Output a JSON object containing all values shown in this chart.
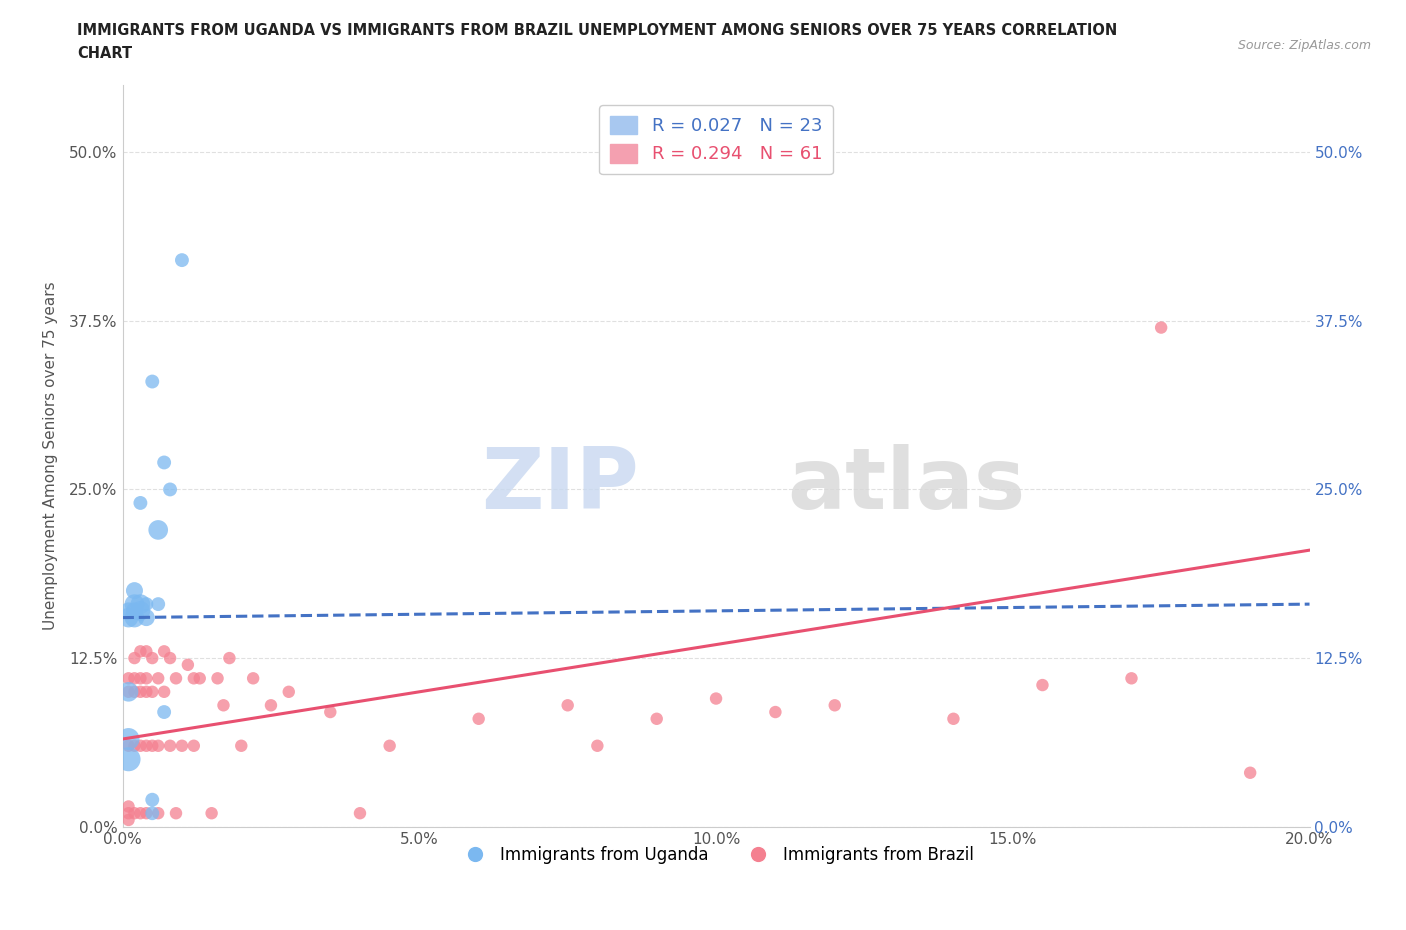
{
  "title_line1": "IMMIGRANTS FROM UGANDA VS IMMIGRANTS FROM BRAZIL UNEMPLOYMENT AMONG SENIORS OVER 75 YEARS CORRELATION",
  "title_line2": "CHART",
  "source": "Source: ZipAtlas.com",
  "ylabel": "Unemployment Among Seniors over 75 years",
  "xlim": [
    0.0,
    0.2
  ],
  "ylim": [
    0.0,
    0.55
  ],
  "yticks": [
    0.0,
    0.125,
    0.25,
    0.375,
    0.5
  ],
  "ytick_labels": [
    "0.0%",
    "12.5%",
    "25.0%",
    "37.5%",
    "50.0%"
  ],
  "xticks": [
    0.0,
    0.05,
    0.1,
    0.15,
    0.2
  ],
  "xtick_labels": [
    "0.0%",
    "5.0%",
    "10.0%",
    "15.0%",
    "20.0%"
  ],
  "legend1_label": "R = 0.027   N = 23",
  "legend2_label": "R = 0.294   N = 61",
  "legend1_color": "#a8c8f0",
  "legend2_color": "#f4a0b0",
  "color_uganda": "#7bb8f0",
  "color_brazil": "#f48090",
  "color_uganda_line": "#4472c4",
  "color_brazil_line": "#e85070",
  "uganda_x": [
    0.001,
    0.001,
    0.001,
    0.001,
    0.001,
    0.002,
    0.002,
    0.002,
    0.002,
    0.003,
    0.003,
    0.003,
    0.004,
    0.004,
    0.005,
    0.005,
    0.005,
    0.006,
    0.006,
    0.007,
    0.007,
    0.008,
    0.01
  ],
  "uganda_y": [
    0.05,
    0.065,
    0.1,
    0.155,
    0.16,
    0.155,
    0.16,
    0.165,
    0.175,
    0.16,
    0.165,
    0.24,
    0.155,
    0.165,
    0.01,
    0.02,
    0.33,
    0.165,
    0.22,
    0.27,
    0.085,
    0.25,
    0.42
  ],
  "uganda_sizes": [
    300,
    250,
    200,
    200,
    150,
    200,
    150,
    200,
    150,
    200,
    200,
    100,
    150,
    100,
    100,
    100,
    100,
    100,
    200,
    100,
    100,
    100,
    100
  ],
  "brazil_x": [
    0.001,
    0.001,
    0.001,
    0.001,
    0.001,
    0.001,
    0.002,
    0.002,
    0.002,
    0.002,
    0.002,
    0.003,
    0.003,
    0.003,
    0.003,
    0.003,
    0.004,
    0.004,
    0.004,
    0.004,
    0.004,
    0.005,
    0.005,
    0.005,
    0.006,
    0.006,
    0.006,
    0.007,
    0.007,
    0.008,
    0.008,
    0.009,
    0.009,
    0.01,
    0.011,
    0.012,
    0.012,
    0.013,
    0.015,
    0.016,
    0.017,
    0.018,
    0.02,
    0.022,
    0.025,
    0.028,
    0.035,
    0.04,
    0.045,
    0.06,
    0.075,
    0.08,
    0.09,
    0.1,
    0.11,
    0.12,
    0.14,
    0.155,
    0.17,
    0.175,
    0.19
  ],
  "brazil_y": [
    0.005,
    0.01,
    0.015,
    0.06,
    0.1,
    0.11,
    0.01,
    0.06,
    0.1,
    0.11,
    0.125,
    0.01,
    0.06,
    0.1,
    0.11,
    0.13,
    0.01,
    0.06,
    0.1,
    0.11,
    0.13,
    0.06,
    0.1,
    0.125,
    0.01,
    0.06,
    0.11,
    0.1,
    0.13,
    0.06,
    0.125,
    0.01,
    0.11,
    0.06,
    0.12,
    0.06,
    0.11,
    0.11,
    0.01,
    0.11,
    0.09,
    0.125,
    0.06,
    0.11,
    0.09,
    0.1,
    0.085,
    0.01,
    0.06,
    0.08,
    0.09,
    0.06,
    0.08,
    0.095,
    0.085,
    0.09,
    0.08,
    0.105,
    0.11,
    0.37,
    0.04
  ],
  "brazil_sizes": [
    80,
    80,
    80,
    80,
    80,
    80,
    80,
    80,
    80,
    80,
    80,
    80,
    80,
    80,
    80,
    80,
    80,
    80,
    80,
    80,
    80,
    80,
    80,
    80,
    80,
    80,
    80,
    80,
    80,
    80,
    80,
    80,
    80,
    80,
    80,
    80,
    80,
    80,
    80,
    80,
    80,
    80,
    80,
    80,
    80,
    80,
    80,
    80,
    80,
    80,
    80,
    80,
    80,
    80,
    80,
    80,
    80,
    80,
    80,
    80,
    80
  ],
  "uganda_line_x": [
    0.0,
    0.2
  ],
  "uganda_line_y": [
    0.155,
    0.165
  ],
  "brazil_line_x": [
    0.0,
    0.2
  ],
  "brazil_line_y": [
    0.065,
    0.205
  ],
  "watermark_zip": "ZIP",
  "watermark_atlas": "atlas",
  "background_color": "#ffffff",
  "grid_color": "#e0e0e0"
}
